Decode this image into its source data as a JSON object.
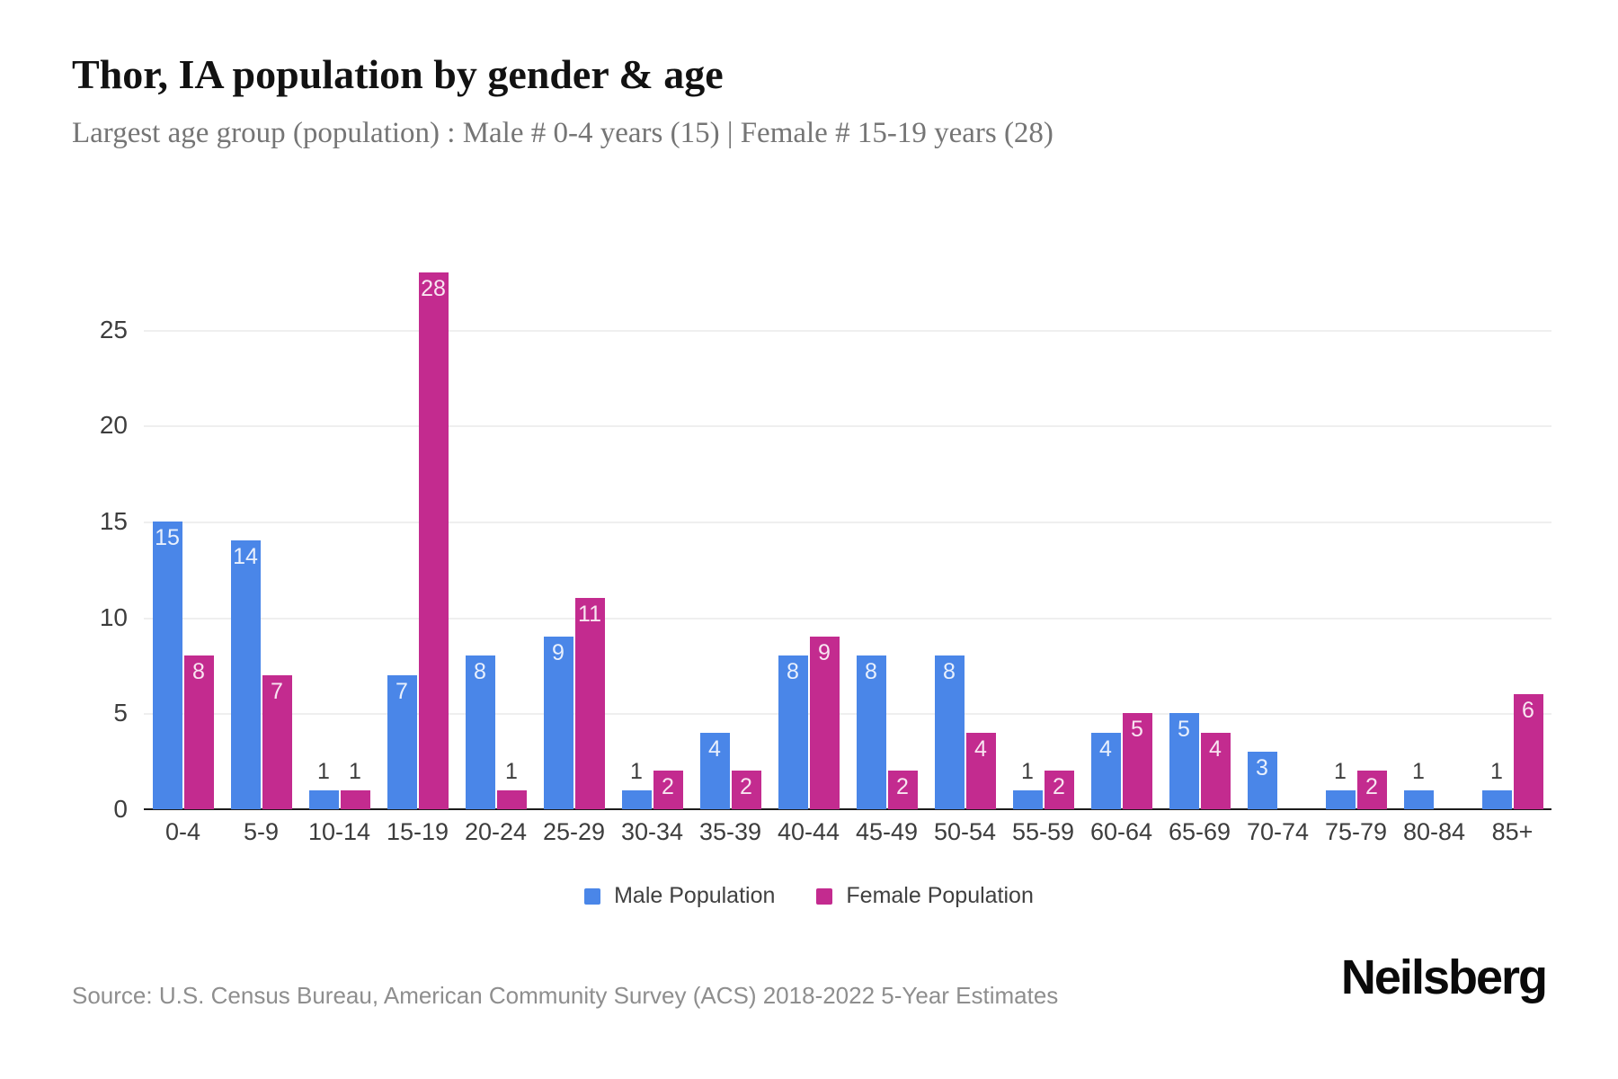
{
  "header": {
    "title": "Thor, IA population by gender & age",
    "subtitle": "Largest age group (population) : Male # 0-4 years (15) | Female # 15-19 years (28)"
  },
  "chart_data": {
    "type": "bar",
    "title": "Thor, IA population by gender & age",
    "subtitle": "Largest age group (population) : Male # 0-4 years (15) | Female # 15-19 years (28)",
    "xlabel": "",
    "ylabel": "",
    "categories": [
      "0-4",
      "5-9",
      "10-14",
      "15-19",
      "20-24",
      "25-29",
      "30-34",
      "35-39",
      "40-44",
      "45-49",
      "50-54",
      "55-59",
      "60-64",
      "65-69",
      "70-74",
      "75-79",
      "80-84",
      "85+"
    ],
    "series": [
      {
        "name": "Male Population",
        "color": "#4a86e8",
        "values": [
          15,
          14,
          1,
          7,
          8,
          9,
          1,
          4,
          8,
          8,
          8,
          1,
          4,
          5,
          3,
          1,
          1,
          1
        ]
      },
      {
        "name": "Female Population",
        "color": "#c32b8f",
        "values": [
          8,
          7,
          1,
          28,
          1,
          11,
          2,
          2,
          9,
          2,
          4,
          2,
          5,
          4,
          0,
          2,
          0,
          6
        ]
      }
    ],
    "ylim": [
      0,
      30
    ],
    "yticks": [
      0,
      5,
      10,
      15,
      20,
      25
    ],
    "grid": true,
    "legend_position": "bottom",
    "value_labels": true
  },
  "footer": {
    "source": "Source: U.S. Census Bureau, American Community Survey (ACS) 2018-2022 5-Year Estimates",
    "brand": "Neilsberg"
  }
}
